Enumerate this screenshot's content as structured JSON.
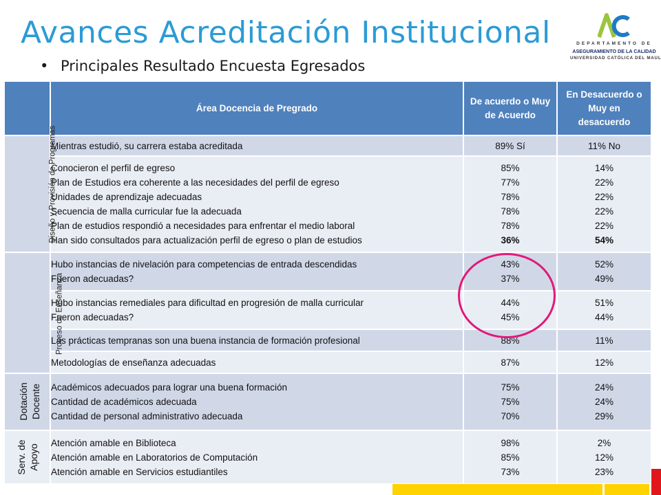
{
  "title": "Avances Acreditación Institucional",
  "subtitle": "Principales Resultado Encuesta Egresados",
  "logo": {
    "line1": "DEPARTAMENTO DE",
    "line2": "ASEGURAMIENTO DE LA CALIDAD",
    "line3": "UNIVERSIDAD CATÓLICA DEL MAULE",
    "colors": {
      "green": "#9BC53D",
      "blue": "#1E7BC8"
    }
  },
  "colors": {
    "title": "#2B9BD6",
    "header": "#4F81BD",
    "band": "#D0D8E8",
    "band_alt": "#E9EDF4",
    "highlight_circle": "#E4177A",
    "deco_yellow": "#FFD200",
    "deco_red": "#E0161A"
  },
  "table": {
    "headers": {
      "area": "Área Docencia de Pregrado",
      "agree": "De acuerdo o Muy de Acuerdo",
      "disagree": "En Desacuerdo o Muy en desacuerdo"
    },
    "categories": {
      "design": "Diseño y Provisión de Programas",
      "teaching": "Proceso de Enseñanza",
      "staff": "Dotación Docente",
      "support": "Serv. de Apoyo"
    },
    "rows": [
      {
        "questions": [
          "Mientras estudió, su carrera estaba acreditada"
        ],
        "agree": [
          "89% Sí"
        ],
        "disagree": [
          "11% No"
        ]
      },
      {
        "questions": [
          "Conocieron el perfil de egreso",
          "Plan de Estudios era coherente a las necesidades del perfil de egreso",
          "Unidades de aprendizaje adecuadas",
          "Secuencia de malla curricular fue la adecuada",
          "Plan de estudios respondió a necesidades para enfrentar el medio laboral",
          "Han sido consultados para actualización perfil de egreso o plan de estudios"
        ],
        "agree": [
          "85%",
          "77%",
          "78%",
          "78%",
          "78%",
          "36%"
        ],
        "disagree": [
          "14%",
          "22%",
          "22%",
          "22%",
          "22%",
          "54%"
        ]
      },
      {
        "questions": [
          "Hubo instancias de nivelación para competencias de entrada descendidas",
          "Fueron adecuadas?"
        ],
        "agree": [
          "43%",
          "37%"
        ],
        "disagree": [
          "52%",
          "49%"
        ]
      },
      {
        "questions": [
          "Hubo instancias remediales para dificultad en progresión de malla curricular",
          "Fueron adecuadas?"
        ],
        "agree": [
          "44%",
          "45%"
        ],
        "disagree": [
          "51%",
          "44%"
        ]
      },
      {
        "questions": [
          "Las prácticas tempranas son una buena instancia de formación profesional"
        ],
        "agree": [
          "88%"
        ],
        "disagree": [
          "11%"
        ]
      },
      {
        "questions": [
          "Metodologías de enseñanza adecuadas"
        ],
        "agree": [
          "87%"
        ],
        "disagree": [
          "12%"
        ]
      },
      {
        "questions": [
          "Académicos adecuados para lograr una buena formación",
          "Cantidad de académicos adecuada",
          "Cantidad de personal administrativo adecuada"
        ],
        "agree": [
          "75%",
          "75%",
          "70%"
        ],
        "disagree": [
          "24%",
          "24%",
          "29%"
        ]
      },
      {
        "questions": [
          "Atención amable en Biblioteca",
          "Atención amable en Laboratorios de Computación",
          "Atención amable en  Servicios estudiantiles"
        ],
        "agree": [
          "98%",
          "85%",
          "73%"
        ],
        "disagree": [
          "2%",
          "12%",
          "23%"
        ]
      }
    ]
  }
}
